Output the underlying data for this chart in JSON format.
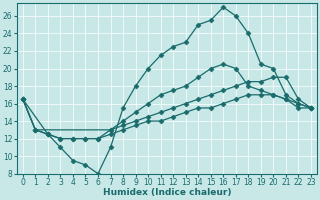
{
  "xlabel": "Humidex (Indice chaleur)",
  "bg_color": "#c8e8e8",
  "line_color": "#1a6b6b",
  "grid_color": "#b0d0d0",
  "xlim": [
    -0.5,
    23.5
  ],
  "ylim": [
    8,
    27.5
  ],
  "yticks": [
    8,
    10,
    12,
    14,
    16,
    18,
    20,
    22,
    24,
    26
  ],
  "xticks": [
    0,
    1,
    2,
    3,
    4,
    5,
    6,
    7,
    8,
    9,
    10,
    11,
    12,
    13,
    14,
    15,
    16,
    17,
    18,
    19,
    20,
    21,
    22,
    23
  ],
  "line1_x": [
    0,
    1,
    2,
    3,
    4,
    5,
    6,
    7,
    8,
    9,
    10,
    11,
    12,
    13,
    14,
    15,
    16,
    17,
    18,
    19,
    20,
    21,
    22,
    23
  ],
  "line1_y": [
    16.5,
    13,
    12.5,
    11,
    9.5,
    9,
    8,
    11,
    15.5,
    18,
    20,
    21.5,
    22.5,
    23,
    25,
    25.5,
    27,
    26,
    24,
    20.5,
    20,
    17,
    16,
    15.5
  ],
  "line2_x": [
    0,
    1,
    7,
    8,
    9,
    10,
    11,
    12,
    13,
    14,
    15,
    16,
    17,
    18,
    19,
    20,
    21,
    22,
    23
  ],
  "line2_y": [
    16.5,
    13,
    13,
    14,
    15,
    16,
    17,
    17.5,
    18,
    19,
    20,
    20.5,
    20,
    18,
    17.5,
    17,
    16.5,
    16,
    15.5
  ],
  "line3_x": [
    0,
    1,
    2,
    3,
    4,
    5,
    6,
    7,
    8,
    9,
    10,
    11,
    12,
    13,
    14,
    15,
    16,
    17,
    18,
    19,
    20,
    21,
    22,
    23
  ],
  "line3_y": [
    16.5,
    13,
    12.5,
    12,
    12,
    12,
    12,
    13,
    13.5,
    14,
    14.5,
    15,
    15.5,
    16,
    16.5,
    17,
    17.5,
    18,
    18.5,
    18.5,
    19,
    19,
    16.5,
    15.5
  ],
  "line4_x": [
    0,
    2,
    3,
    4,
    5,
    6,
    7,
    8,
    9,
    10,
    11,
    12,
    13,
    14,
    15,
    16,
    17,
    18,
    19,
    20,
    21,
    22,
    23
  ],
  "line4_y": [
    16.5,
    12.5,
    12,
    12,
    12,
    12,
    12.5,
    13,
    13.5,
    14,
    14,
    14.5,
    15,
    15.5,
    15.5,
    16,
    16.5,
    17,
    17,
    17,
    16.5,
    15.5,
    15.5
  ],
  "marker_size": 2.5,
  "linewidth": 0.9,
  "font_size_axis": 6.5,
  "font_size_tick": 5.5
}
